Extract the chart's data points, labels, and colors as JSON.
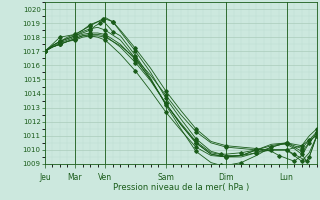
{
  "xlabel": "Pression niveau de la mer( hPa )",
  "background_color": "#cce8de",
  "grid_major_color": "#aaccbb",
  "grid_minor_color": "#bbddd0",
  "line_color": "#1a5c1a",
  "ylim": [
    1009,
    1020.5
  ],
  "yticks": [
    1009,
    1010,
    1011,
    1012,
    1013,
    1014,
    1015,
    1016,
    1017,
    1018,
    1019,
    1020
  ],
  "day_labels": [
    "Jeu",
    "Mar",
    "Ven",
    "Sam",
    "Dim",
    "Lun"
  ],
  "day_positions": [
    0,
    24,
    48,
    96,
    144,
    192
  ],
  "total_hours": 216,
  "lines": [
    [
      0,
      1017.0,
      6,
      1017.3,
      12,
      1017.5,
      18,
      1017.7,
      24,
      1017.8,
      30,
      1018.0,
      36,
      1018.1,
      42,
      1018.1,
      48,
      1018.0,
      60,
      1017.4,
      72,
      1016.5,
      84,
      1015.3,
      96,
      1013.9,
      108,
      1012.5,
      120,
      1011.3,
      132,
      1010.5,
      144,
      1010.2,
      156,
      1010.1,
      168,
      1010.0,
      180,
      1010.0,
      192,
      1010.0,
      204,
      1010.3,
      210,
      1010.7,
      216,
      1011.0
    ],
    [
      0,
      1017.0,
      6,
      1017.4,
      12,
      1017.7,
      18,
      1017.9,
      24,
      1018.1,
      30,
      1018.3,
      36,
      1018.5,
      40,
      1018.8,
      44,
      1019.0,
      48,
      1019.3,
      54,
      1019.1,
      60,
      1018.5,
      72,
      1017.2,
      84,
      1015.8,
      96,
      1014.2,
      108,
      1012.8,
      120,
      1011.5,
      132,
      1010.6,
      144,
      1010.3,
      156,
      1010.2,
      168,
      1010.1,
      180,
      1009.9,
      186,
      1009.6,
      192,
      1009.4,
      198,
      1009.2,
      204,
      1009.6,
      210,
      1010.5,
      216,
      1011.2
    ],
    [
      0,
      1017.0,
      6,
      1017.4,
      12,
      1017.7,
      18,
      1018.0,
      24,
      1018.2,
      30,
      1018.5,
      36,
      1018.8,
      42,
      1019.1,
      46,
      1019.3,
      48,
      1019.4,
      54,
      1019.1,
      60,
      1018.4,
      72,
      1017.0,
      84,
      1015.5,
      96,
      1013.7,
      108,
      1012.2,
      120,
      1010.8,
      132,
      1009.9,
      140,
      1009.7,
      144,
      1009.7,
      156,
      1009.8,
      168,
      1010.0,
      180,
      1010.0,
      192,
      1010.0,
      198,
      1009.7,
      204,
      1009.4,
      208,
      1009.2,
      210,
      1009.5,
      216,
      1011.0
    ],
    [
      0,
      1017.0,
      6,
      1017.3,
      12,
      1017.5,
      18,
      1017.7,
      24,
      1017.9,
      30,
      1018.1,
      36,
      1018.2,
      42,
      1018.2,
      48,
      1018.1,
      60,
      1017.3,
      72,
      1016.2,
      84,
      1014.9,
      96,
      1013.3,
      108,
      1011.9,
      120,
      1010.6,
      132,
      1009.8,
      144,
      1009.6,
      156,
      1009.6,
      168,
      1009.8,
      180,
      1010.0,
      192,
      1010.0,
      198,
      1009.6,
      204,
      1009.2,
      210,
      1009.8,
      216,
      1011.0
    ],
    [
      0,
      1017.0,
      6,
      1017.3,
      12,
      1017.5,
      18,
      1017.7,
      24,
      1017.9,
      30,
      1018.1,
      36,
      1018.1,
      42,
      1018.0,
      48,
      1017.8,
      60,
      1016.8,
      72,
      1015.6,
      84,
      1014.2,
      96,
      1012.7,
      108,
      1011.4,
      120,
      1010.2,
      132,
      1009.6,
      144,
      1009.5,
      156,
      1009.5,
      168,
      1009.8,
      180,
      1010.2,
      192,
      1010.5,
      198,
      1010.4,
      204,
      1010.3,
      210,
      1011.0,
      216,
      1011.5
    ],
    [
      0,
      1017.0,
      6,
      1017.3,
      12,
      1017.6,
      18,
      1017.8,
      24,
      1018.0,
      30,
      1018.2,
      36,
      1018.3,
      42,
      1018.3,
      48,
      1018.2,
      60,
      1017.5,
      72,
      1016.4,
      84,
      1015.0,
      96,
      1013.3,
      108,
      1011.8,
      120,
      1010.5,
      132,
      1009.7,
      144,
      1009.5,
      156,
      1009.6,
      168,
      1010.0,
      180,
      1010.3,
      192,
      1010.5,
      198,
      1010.3,
      204,
      1010.1,
      210,
      1010.7,
      216,
      1011.3
    ],
    [
      0,
      1017.0,
      6,
      1017.4,
      12,
      1017.7,
      18,
      1017.9,
      24,
      1018.1,
      30,
      1018.4,
      36,
      1018.6,
      42,
      1018.7,
      48,
      1018.5,
      60,
      1017.8,
      72,
      1016.5,
      84,
      1015.0,
      96,
      1013.3,
      108,
      1011.8,
      120,
      1010.5,
      132,
      1009.7,
      144,
      1009.5,
      156,
      1009.6,
      168,
      1010.0,
      180,
      1010.4,
      192,
      1010.5,
      198,
      1010.2,
      204,
      1009.9,
      210,
      1010.5,
      216,
      1011.2
    ],
    [
      0,
      1017.0,
      6,
      1017.5,
      12,
      1018.0,
      18,
      1018.1,
      24,
      1018.2,
      30,
      1018.5,
      36,
      1018.9,
      42,
      1019.1,
      46,
      1019.2,
      48,
      1019.0,
      54,
      1018.4,
      60,
      1018.1,
      72,
      1016.7,
      84,
      1015.1,
      96,
      1013.2,
      108,
      1011.5,
      120,
      1009.9,
      132,
      1009.1,
      140,
      1008.9,
      144,
      1008.9,
      156,
      1009.1,
      168,
      1009.6,
      180,
      1010.2,
      188,
      1010.4,
      192,
      1010.4,
      198,
      1010.1,
      204,
      1009.7,
      208,
      1009.2,
      210,
      1009.5,
      216,
      1011.0
    ]
  ]
}
